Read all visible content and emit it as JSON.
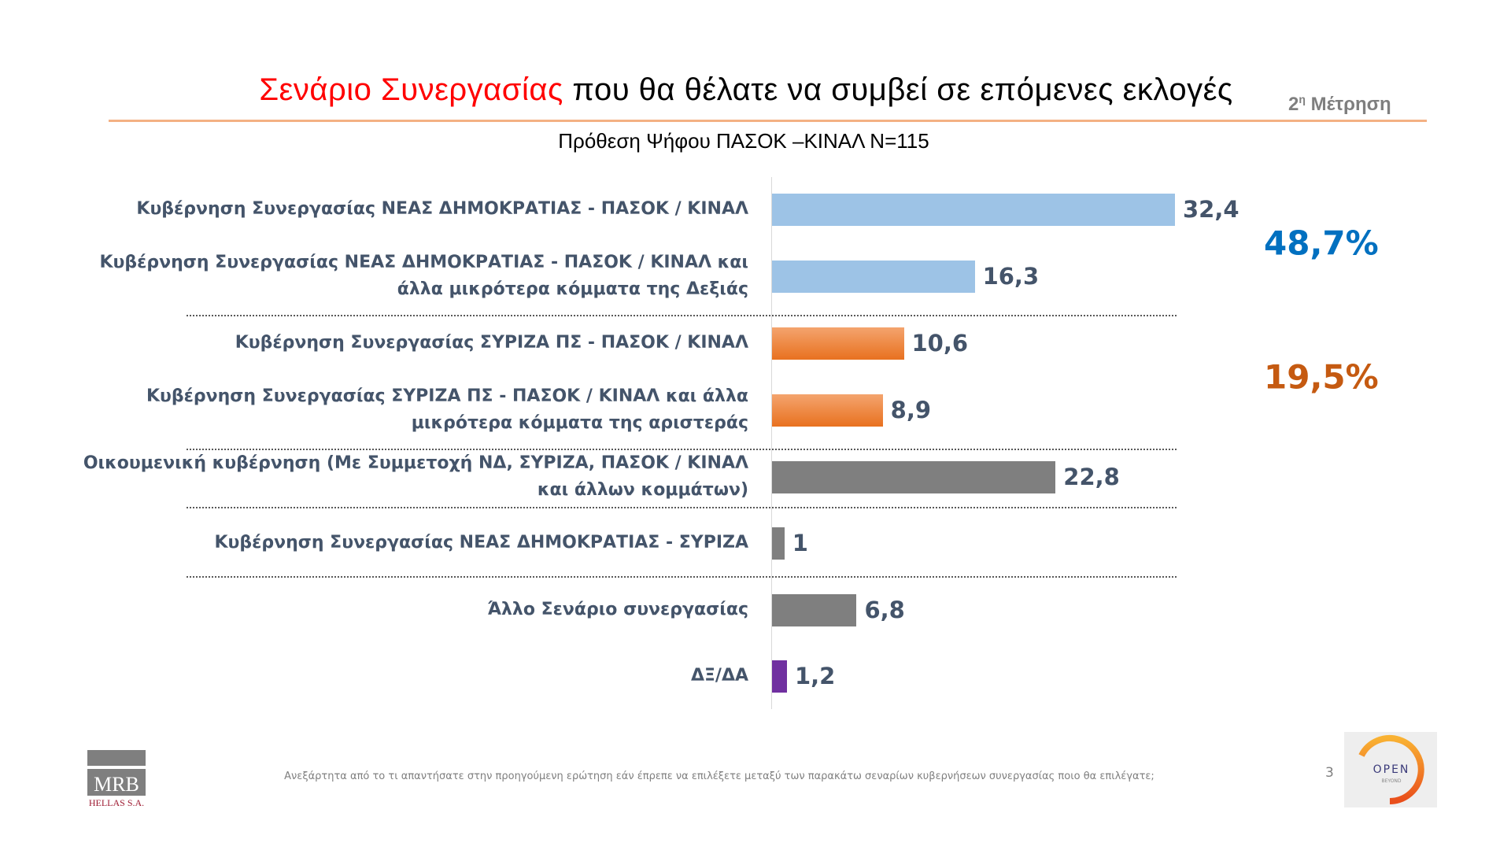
{
  "header": {
    "title_highlight": "Σενάριο Συνεργασίας",
    "title_rest": " που θα θέλατε να συμβεί σε επόμενες εκλογές",
    "measurement_num": "2",
    "measurement_sup": "η",
    "measurement_text": " Μέτρηση",
    "subtitle": "Πρόθεση Ψήφου ΠΑΣΟΚ –ΚΙΝΑΛ Ν=115"
  },
  "chart_data": {
    "type": "bar",
    "orientation": "horizontal",
    "categories": [
      "Κυβέρνηση  Συνεργασίας ΝΕΑΣ ΔΗΜΟΚΡΑΤΙΑΣ  - ΠΑΣΟΚ / ΚΙΝΑΛ",
      "Κυβέρνηση  Συνεργασίας ΝΕΑΣ ΔΗΜΟΚΡΑΤΙΑΣ  - ΠΑΣΟΚ / ΚΙΝΑΛ και\nάλλα μικρότερα κόμματα της Δεξιάς",
      "Κυβέρνηση  Συνεργασίας ΣΥΡΙΖΑ ΠΣ - ΠΑΣΟΚ / ΚΙΝΑΛ",
      "Κυβέρνηση  Συνεργασίας ΣΥΡΙΖΑ ΠΣ - ΠΑΣΟΚ / ΚΙΝΑΛ και άλλα\nμικρότερα κόμματα της αριστεράς",
      "Οικουμενική  κυβέρνηση (Με Συμμετοχή ΝΔ, ΣΥΡΙΖΑ, ΠΑΣΟΚ / ΚΙΝΑΛ\nκαι άλλων κομμάτων)",
      "Κυβέρνηση  Συνεργασίας ΝΕΑΣ ΔΗΜΟΚΡΑΤΙΑΣ  - ΣΥΡΙΖΑ",
      "Άλλο Σενάριο συνεργασίας",
      "ΔΞ/ΔΑ"
    ],
    "values": [
      32.4,
      16.3,
      10.6,
      8.9,
      22.8,
      1,
      6.8,
      1.2
    ],
    "value_labels": [
      "32,4",
      "16,3",
      "10,6",
      "8,9",
      "22,8",
      "1",
      "6,8",
      "1,2"
    ],
    "colors": [
      "#9dc3e6",
      "#9dc3e6",
      "#ed7d31",
      "#ed7d31",
      "#7f7f7f",
      "#7f7f7f",
      "#7f7f7f",
      "#7030a0"
    ],
    "group_separators_after": [
      1,
      3,
      4,
      5
    ],
    "group_totals": [
      {
        "label": "48,7%",
        "color": "#0070c0",
        "rows": [
          0,
          1
        ]
      },
      {
        "label": "19,5%",
        "color": "#c55a11",
        "rows": [
          2,
          3
        ]
      }
    ],
    "xlim": [
      0,
      32.4
    ]
  },
  "footer": {
    "note": "Ανεξάρτητα από το τι απαντήσατε στην προηγούμενη ερώτηση  εάν έπρεπε να επιλέξετε μεταξύ των παρακάτω σεναρίων  κυβερνήσεων  συνεργασίας ποιο θα επιλέγατε;",
    "page_number": "3",
    "logo_left": "MRB HELLAS S.A.",
    "logo_right": "OPEN BEYOND"
  }
}
